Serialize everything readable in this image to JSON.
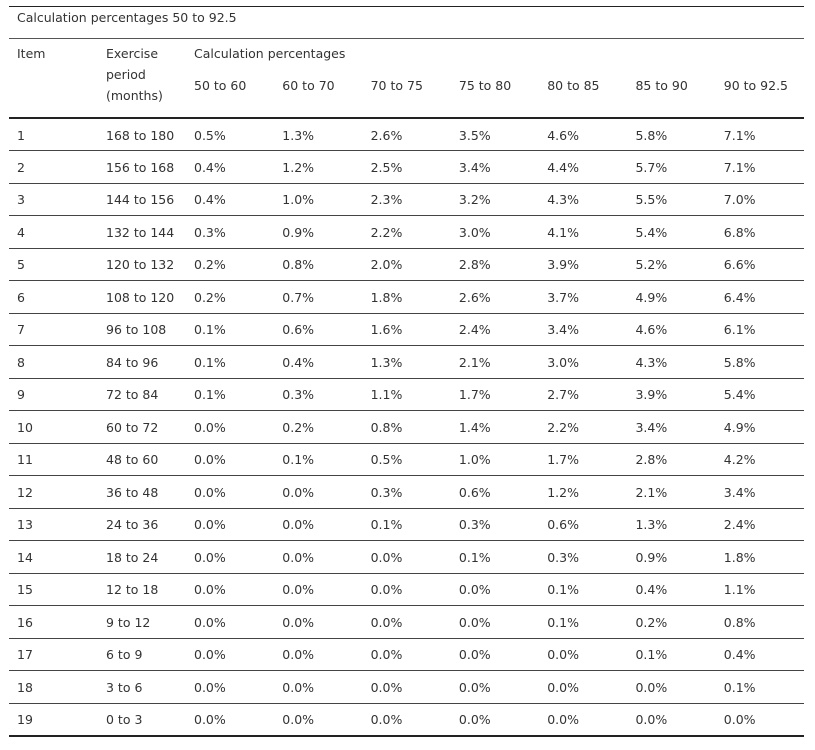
{
  "caption": "Calculation percentages 50 to 92.5",
  "headers": {
    "item": "Item",
    "period_line1": "Exercise",
    "period_line2": "period",
    "period_line3": "(months)",
    "group": "Calculation percentages",
    "ranges": [
      "50 to 60",
      "60 to 70",
      "70 to 75",
      "75 to 80",
      "80 to 85",
      "85 to 90",
      "90 to 92.5"
    ]
  },
  "rows": [
    {
      "item": "1",
      "period": "168 to 180",
      "values": [
        "0.5%",
        "1.3%",
        "2.6%",
        "3.5%",
        "4.6%",
        "5.8%",
        "7.1%"
      ]
    },
    {
      "item": "2",
      "period": "156 to 168",
      "values": [
        "0.4%",
        "1.2%",
        "2.5%",
        "3.4%",
        "4.4%",
        "5.7%",
        "7.1%"
      ]
    },
    {
      "item": "3",
      "period": "144 to 156",
      "values": [
        "0.4%",
        "1.0%",
        "2.3%",
        "3.2%",
        "4.3%",
        "5.5%",
        "7.0%"
      ]
    },
    {
      "item": "4",
      "period": "132 to 144",
      "values": [
        "0.3%",
        "0.9%",
        "2.2%",
        "3.0%",
        "4.1%",
        "5.4%",
        "6.8%"
      ]
    },
    {
      "item": "5",
      "period": "120 to 132",
      "values": [
        "0.2%",
        "0.8%",
        "2.0%",
        "2.8%",
        "3.9%",
        "5.2%",
        "6.6%"
      ]
    },
    {
      "item": "6",
      "period": "108 to 120",
      "values": [
        "0.2%",
        "0.7%",
        "1.8%",
        "2.6%",
        "3.7%",
        "4.9%",
        "6.4%"
      ]
    },
    {
      "item": "7",
      "period": "96 to 108",
      "values": [
        "0.1%",
        "0.6%",
        "1.6%",
        "2.4%",
        "3.4%",
        "4.6%",
        "6.1%"
      ]
    },
    {
      "item": "8",
      "period": "84 to 96",
      "values": [
        "0.1%",
        "0.4%",
        "1.3%",
        "2.1%",
        "3.0%",
        "4.3%",
        "5.8%"
      ]
    },
    {
      "item": "9",
      "period": "72 to 84",
      "values": [
        "0.1%",
        "0.3%",
        "1.1%",
        "1.7%",
        "2.7%",
        "3.9%",
        "5.4%"
      ]
    },
    {
      "item": "10",
      "period": "60 to 72",
      "values": [
        "0.0%",
        "0.2%",
        "0.8%",
        "1.4%",
        "2.2%",
        "3.4%",
        "4.9%"
      ]
    },
    {
      "item": "11",
      "period": "48 to 60",
      "values": [
        "0.0%",
        "0.1%",
        "0.5%",
        "1.0%",
        "1.7%",
        "2.8%",
        "4.2%"
      ]
    },
    {
      "item": "12",
      "period": "36 to 48",
      "values": [
        "0.0%",
        "0.0%",
        "0.3%",
        "0.6%",
        "1.2%",
        "2.1%",
        "3.4%"
      ]
    },
    {
      "item": "13",
      "period": "24 to 36",
      "values": [
        "0.0%",
        "0.0%",
        "0.1%",
        "0.3%",
        "0.6%",
        "1.3%",
        "2.4%"
      ]
    },
    {
      "item": "14",
      "period": "18 to 24",
      "values": [
        "0.0%",
        "0.0%",
        "0.0%",
        "0.1%",
        "0.3%",
        "0.9%",
        "1.8%"
      ]
    },
    {
      "item": "15",
      "period": "12 to 18",
      "values": [
        "0.0%",
        "0.0%",
        "0.0%",
        "0.0%",
        "0.1%",
        "0.4%",
        "1.1%"
      ]
    },
    {
      "item": "16",
      "period": "9 to 12",
      "values": [
        "0.0%",
        "0.0%",
        "0.0%",
        "0.0%",
        "0.1%",
        "0.2%",
        "0.8%"
      ]
    },
    {
      "item": "17",
      "period": "6 to 9",
      "values": [
        "0.0%",
        "0.0%",
        "0.0%",
        "0.0%",
        "0.0%",
        "0.1%",
        "0.4%"
      ]
    },
    {
      "item": "18",
      "period": "3 to 6",
      "values": [
        "0.0%",
        "0.0%",
        "0.0%",
        "0.0%",
        "0.0%",
        "0.0%",
        "0.1%"
      ]
    },
    {
      "item": "19",
      "period": "0 to 3",
      "values": [
        "0.0%",
        "0.0%",
        "0.0%",
        "0.0%",
        "0.0%",
        "0.0%",
        "0.0%"
      ]
    }
  ]
}
